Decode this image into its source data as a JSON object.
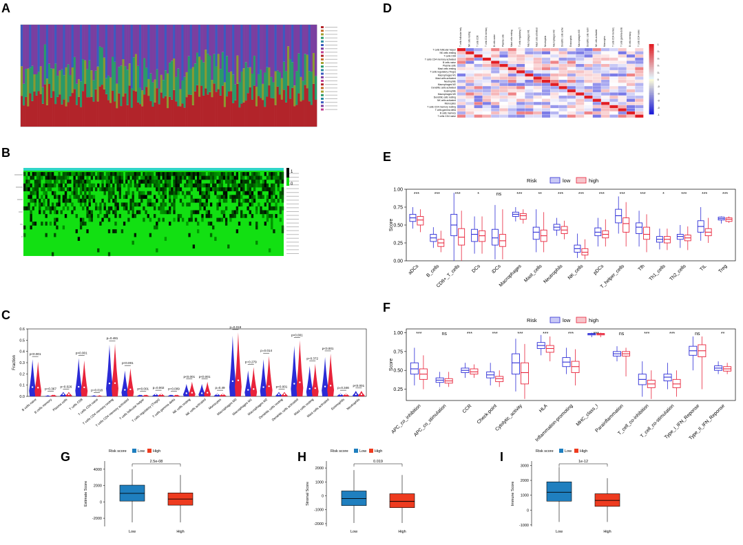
{
  "panel_labels": {
    "a": "A",
    "b": "B",
    "c": "C",
    "d": "D",
    "e": "E",
    "f": "F",
    "g": "G",
    "h": "H",
    "i": "I"
  },
  "colors": {
    "low": "#2b2bd6",
    "high": "#e8233a",
    "g_low": "#1f7fbf",
    "g_high": "#ee3b1f",
    "heat_high": "#e21d23",
    "heat_low": "#1c1cd8",
    "bar_top": "#7a3fa0",
    "bar_mid": "#2a9a6a",
    "bar_low": "#b2242a",
    "panelB_bg": "#12e012"
  },
  "chart_data": [
    {
      "id": "A",
      "type": "bar",
      "title": "",
      "stacked": true,
      "n_samples": 420,
      "series": [
        {
          "name": "bottom (red)",
          "mean_fraction": 0.3
        },
        {
          "name": "middle (olive/green)",
          "mean_fraction": 0.25
        },
        {
          "name": "top (purple/blue)",
          "mean_fraction": 0.45
        }
      ],
      "legend_items": 24
    },
    {
      "id": "B",
      "type": "heatmap",
      "rows": 22,
      "n_samples": 420,
      "color_scale": [
        "#000000",
        "#12e012"
      ],
      "legend_ticks": [
        "1",
        "0"
      ]
    },
    {
      "id": "C",
      "type": "violin",
      "ylabel": "Fraction",
      "ylim": [
        0,
        0.6
      ],
      "yticks": [
        "0.0",
        "0.1",
        "0.2",
        "0.3",
        "0.4",
        "0.5",
        "0.6"
      ],
      "categories": [
        "B_cells_naive",
        "B_cells_memory",
        "Plasma_cells",
        "T_cells_CD8",
        "T_cells_CD4_naive",
        "T_cells_CD4_memory_resting",
        "T_cells_CD4_memory_activated",
        "T_cells_follicular_helper",
        "T_cells_regulatory_(Tregs)",
        "T_cells_gamma_delta",
        "NK_cells_resting",
        "NK_cells_activated",
        "Monocytes",
        "Macrophages_M0",
        "Macrophages_M1",
        "Macrophages_M2",
        "Dendritic_cells_resting",
        "Dendritic_cells_activated",
        "Mast_cells_resting",
        "Mast_cells_activated",
        "Eosinophils",
        "Neutrophils"
      ],
      "pvalues": [
        "p<0.001",
        "p=0.367",
        "p=0.026",
        "p<0.001",
        "p=0.018",
        "p=0.481",
        "p<0.001",
        "p<0.001",
        "p=0.002",
        "p=0.009",
        "p<0.001",
        "p<0.001",
        "p=0.49",
        "p=0.018",
        "p=0.279",
        "p=0.014",
        "p<0.001",
        "p<0.001",
        "p=0.372",
        "p<0.001",
        "p=0.346",
        "p<0.001"
      ],
      "series": [
        {
          "name": "low",
          "max": [
            0.33,
            0.01,
            0.04,
            0.34,
            0.01,
            0.46,
            0.23,
            0.02,
            0.03,
            0.02,
            0.11,
            0.11,
            0.03,
            0.54,
            0.23,
            0.33,
            0.04,
            0.45,
            0.27,
            0.35,
            0.03,
            0.05
          ]
        },
        {
          "name": "high",
          "max": [
            0.31,
            0.02,
            0.04,
            0.32,
            0.01,
            0.47,
            0.25,
            0.02,
            0.03,
            0.02,
            0.13,
            0.13,
            0.03,
            0.57,
            0.26,
            0.36,
            0.04,
            0.5,
            0.29,
            0.38,
            0.03,
            0.05
          ]
        }
      ]
    },
    {
      "id": "D",
      "type": "heatmap",
      "rows": 22,
      "row_labels": [
        "T_cells_follicular_helper",
        "NK_cells_resting",
        "T_cells_CD8",
        "T_cells_CD4_memory_activated",
        "B_cells_naive",
        "Plasma_cells",
        "Mast_cells_resting",
        "T_cells_regulatory_(Tregs)",
        "Macrophages_M1",
        "Mast_cells_activated",
        "Neutrophils",
        "Macrophages_M2",
        "Dendritic_cells_activated",
        "Eosinophils",
        "Macrophages_M0",
        "Dendritic_cells_resting",
        "NK_cells_activated",
        "Monocytes",
        "T_cells_CD4_memory_resting",
        "T_cells_gamma_delta",
        "B_cells_memory",
        "T_cells_CD4_naive"
      ],
      "scale_ticks": [
        "1",
        "0.8",
        "0.6",
        "0.4",
        "0.2",
        "0",
        "-0.2",
        "-0.4",
        "-0.6",
        "-0.8",
        "-1"
      ]
    },
    {
      "id": "E",
      "type": "box",
      "legend_title": "Risk",
      "legend": [
        "low",
        "high"
      ],
      "ylabel": "Score",
      "ylim": [
        0,
        1
      ],
      "yticks": [
        "0.00",
        "0.25",
        "0.50",
        "0.75",
        "1.00"
      ],
      "categories": [
        "aDCs",
        "B_cells",
        "CD8+_T_cells",
        "DCs",
        "iDCs",
        "Macrophages",
        "Mast_cells",
        "Neutrophils",
        "NK_cells",
        "pDCs",
        "T_helper_cells",
        "Tfh",
        "Th1_cells",
        "Th2_cells",
        "TIL",
        "Treg"
      ],
      "significance": [
        "***",
        "***",
        "***",
        "*",
        "ns",
        "***",
        "**",
        "***",
        "***",
        "***",
        "***",
        "***",
        "*",
        "***",
        "***",
        "***"
      ],
      "series": [
        {
          "name": "low",
          "median": [
            0.6,
            0.32,
            0.5,
            0.37,
            0.32,
            0.65,
            0.4,
            0.47,
            0.17,
            0.4,
            0.63,
            0.47,
            0.3,
            0.34,
            0.48,
            0.59
          ],
          "q1": [
            0.55,
            0.27,
            0.35,
            0.27,
            0.22,
            0.62,
            0.3,
            0.43,
            0.12,
            0.35,
            0.53,
            0.38,
            0.26,
            0.3,
            0.4,
            0.57
          ],
          "q3": [
            0.65,
            0.37,
            0.65,
            0.44,
            0.44,
            0.68,
            0.47,
            0.51,
            0.22,
            0.46,
            0.72,
            0.53,
            0.34,
            0.37,
            0.56,
            0.61
          ],
          "min": [
            0.45,
            0.18,
            0.0,
            0.1,
            0.02,
            0.55,
            0.12,
            0.35,
            0.04,
            0.2,
            0.38,
            0.2,
            0.16,
            0.18,
            0.28,
            0.52
          ],
          "max": [
            0.75,
            0.47,
            0.95,
            0.62,
            0.78,
            0.75,
            0.72,
            0.6,
            0.38,
            0.6,
            0.9,
            0.7,
            0.45,
            0.5,
            0.75,
            0.62
          ]
        },
        {
          "name": "high",
          "median": [
            0.57,
            0.25,
            0.33,
            0.35,
            0.28,
            0.63,
            0.35,
            0.43,
            0.12,
            0.37,
            0.52,
            0.37,
            0.3,
            0.32,
            0.4,
            0.58
          ],
          "q1": [
            0.5,
            0.2,
            0.22,
            0.27,
            0.2,
            0.58,
            0.27,
            0.38,
            0.08,
            0.32,
            0.4,
            0.3,
            0.25,
            0.28,
            0.35,
            0.55
          ],
          "q3": [
            0.62,
            0.3,
            0.45,
            0.42,
            0.37,
            0.66,
            0.43,
            0.48,
            0.17,
            0.42,
            0.6,
            0.47,
            0.34,
            0.36,
            0.45,
            0.6
          ],
          "min": [
            0.4,
            0.12,
            0.0,
            0.1,
            0.02,
            0.52,
            0.12,
            0.3,
            0.02,
            0.2,
            0.2,
            0.12,
            0.15,
            0.15,
            0.25,
            0.53
          ],
          "max": [
            0.72,
            0.42,
            0.7,
            0.62,
            0.72,
            0.72,
            0.68,
            0.56,
            0.3,
            0.58,
            0.82,
            0.65,
            0.45,
            0.48,
            0.6,
            0.62
          ]
        }
      ]
    },
    {
      "id": "F",
      "type": "box",
      "legend_title": "Risk",
      "legend": [
        "low",
        "high"
      ],
      "ylabel": "Score",
      "ylim": [
        0.1,
        1.05
      ],
      "yticks": [
        "0.25",
        "0.50",
        "0.75",
        "1.00"
      ],
      "categories": [
        "APC_co_inhibition",
        "APC_co_stimulation",
        "CCR",
        "Check-point",
        "Cytolytic_activity",
        "HLA",
        "Inflammation-promoting",
        "MHC_class_I",
        "Parainflammation",
        "T_cell_co-inhibition",
        "T_cell_co-stimulation",
        "Type_I_IFN_Reponse",
        "Type_II_IFN_Reponse"
      ],
      "significance": [
        "***",
        "ns",
        "***",
        "***",
        "***",
        "***",
        "***",
        "***",
        "ns",
        "***",
        "***",
        "ns",
        "**"
      ],
      "series": [
        {
          "name": "low",
          "median": [
            0.52,
            0.37,
            0.5,
            0.44,
            0.6,
            0.83,
            0.61,
            0.98,
            0.72,
            0.38,
            0.41,
            0.76,
            0.53
          ],
          "q1": [
            0.45,
            0.34,
            0.47,
            0.4,
            0.45,
            0.79,
            0.55,
            0.97,
            0.69,
            0.31,
            0.36,
            0.7,
            0.5
          ],
          "q3": [
            0.6,
            0.4,
            0.53,
            0.48,
            0.72,
            0.87,
            0.67,
            0.99,
            0.75,
            0.45,
            0.45,
            0.82,
            0.56
          ],
          "min": [
            0.3,
            0.28,
            0.4,
            0.3,
            0.22,
            0.7,
            0.45,
            0.94,
            0.62,
            0.15,
            0.25,
            0.5,
            0.45
          ],
          "max": [
            0.8,
            0.48,
            0.6,
            0.6,
            0.92,
            0.97,
            0.8,
            1.0,
            0.82,
            0.62,
            0.6,
            0.95,
            0.62
          ]
        },
        {
          "name": "high",
          "median": [
            0.45,
            0.36,
            0.48,
            0.39,
            0.47,
            0.79,
            0.55,
            0.98,
            0.72,
            0.32,
            0.32,
            0.76,
            0.52
          ],
          "q1": [
            0.38,
            0.33,
            0.45,
            0.35,
            0.32,
            0.74,
            0.47,
            0.97,
            0.69,
            0.27,
            0.27,
            0.68,
            0.49
          ],
          "q3": [
            0.52,
            0.39,
            0.52,
            0.42,
            0.6,
            0.83,
            0.62,
            0.99,
            0.75,
            0.37,
            0.38,
            0.84,
            0.55
          ],
          "min": [
            0.25,
            0.28,
            0.4,
            0.28,
            0.12,
            0.62,
            0.3,
            0.94,
            0.42,
            0.12,
            0.15,
            0.25,
            0.45
          ],
          "max": [
            0.7,
            0.48,
            0.58,
            0.5,
            0.85,
            0.95,
            0.78,
            1.0,
            0.8,
            0.5,
            0.5,
            0.95,
            0.6
          ]
        }
      ]
    },
    {
      "id": "G",
      "type": "box",
      "legend_title": "Risk score",
      "legend": [
        "Low",
        "High"
      ],
      "ylabel": "Estimate Score",
      "ylim": [
        -3000,
        5000
      ],
      "yticks": [
        "-2000",
        "0",
        "2000",
        "4000"
      ],
      "categories": [
        "Low",
        "High"
      ],
      "annotation": "2.5e-08",
      "series": [
        {
          "name": "box",
          "median": [
            1050,
            350
          ],
          "q1": [
            100,
            -400
          ],
          "q3": [
            2050,
            1100
          ],
          "min": [
            -2500,
            -2500
          ],
          "max": [
            4000,
            3300
          ]
        }
      ]
    },
    {
      "id": "H",
      "type": "box",
      "legend_title": "Risk score",
      "legend": [
        "Low",
        "High"
      ],
      "ylabel": "Stromal Score",
      "ylim": [
        -2200,
        2500
      ],
      "yticks": [
        "-2000",
        "-1000",
        "0",
        "1000",
        "2000"
      ],
      "categories": [
        "Low",
        "High"
      ],
      "annotation": "0.019",
      "series": [
        {
          "name": "box",
          "median": [
            -200,
            -400
          ],
          "q1": [
            -700,
            -850
          ],
          "q3": [
            350,
            150
          ],
          "min": [
            -1950,
            -1950
          ],
          "max": [
            1850,
            1500
          ]
        }
      ]
    },
    {
      "id": "I",
      "type": "box",
      "legend_title": "Risk score",
      "legend": [
        "Low",
        "High"
      ],
      "ylabel": "Immune Score",
      "ylim": [
        -1100,
        3300
      ],
      "yticks": [
        "-1000",
        "0",
        "1000",
        "2000",
        "3000"
      ],
      "categories": [
        "Low",
        "High"
      ],
      "annotation": "1e-12",
      "series": [
        {
          "name": "box",
          "median": [
            1200,
            650
          ],
          "q1": [
            600,
            250
          ],
          "q3": [
            1900,
            1100
          ],
          "min": [
            -800,
            -800
          ],
          "max": [
            2900,
            2150
          ]
        }
      ]
    }
  ]
}
